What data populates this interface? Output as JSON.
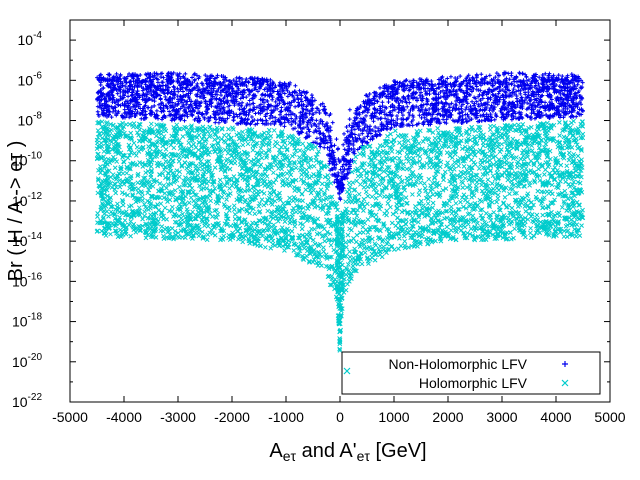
{
  "chart_data": {
    "type": "scatter",
    "title": "",
    "xlabel": {
      "base": "A",
      "sub": "eτ",
      "mid": " and A'",
      "sub2": "eτ",
      "tail": " [GeV]"
    },
    "ylabel": "Br ( H / A -> eτ )",
    "xlim": [
      -5000,
      5000
    ],
    "ylim_exponent": [
      -22,
      -3
    ],
    "y_scale": "log",
    "x_ticks": [
      "-5000",
      "-4000",
      "-3000",
      "-2000",
      "-1000",
      "0",
      "1000",
      "2000",
      "3000",
      "4000",
      "5000"
    ],
    "y_ticks": [
      {
        "base": "10",
        "exp": "-22"
      },
      {
        "base": "10",
        "exp": "-20"
      },
      {
        "base": "10",
        "exp": "-18"
      },
      {
        "base": "10",
        "exp": "-16"
      },
      {
        "base": "10",
        "exp": "-14"
      },
      {
        "base": "10",
        "exp": "-12"
      },
      {
        "base": "10",
        "exp": "-10"
      },
      {
        "base": "10",
        "exp": "-8"
      },
      {
        "base": "10",
        "exp": "-6"
      },
      {
        "base": "10",
        "exp": "-4"
      }
    ],
    "legend_position": "bottom-right",
    "series": [
      {
        "name": "Non-Holomorphic LFV",
        "marker": "+",
        "color": "#0000ee",
        "x_range": [
          -4500,
          4500
        ],
        "log10_br_upper_envelope": [
          [
            -4500,
            -5.7
          ],
          [
            -3000,
            -5.6
          ],
          [
            -1000,
            -6.0
          ],
          [
            -300,
            -7.0
          ],
          [
            0,
            -12.0
          ],
          [
            300,
            -7.0
          ],
          [
            1000,
            -6.0
          ],
          [
            3000,
            -5.6
          ],
          [
            4500,
            -5.7
          ]
        ],
        "log10_br_dense_band": [
          [
            -4500,
            -7.8,
            -6.0
          ],
          [
            -1000,
            -8.3,
            -6.3
          ],
          [
            -300,
            -9.5,
            -7.5
          ],
          [
            0,
            -12.0,
            -11.0
          ],
          [
            300,
            -9.5,
            -7.5
          ],
          [
            1000,
            -8.3,
            -6.3
          ],
          [
            4500,
            -7.8,
            -6.0
          ]
        ]
      },
      {
        "name": "Holomorphic LFV",
        "marker": "x",
        "color": "#00cccc",
        "x_range": [
          -4500,
          4500
        ],
        "log10_br_upper_envelope": [
          [
            -4500,
            -8.0
          ],
          [
            -1000,
            -8.5
          ],
          [
            -300,
            -9.5
          ],
          [
            0,
            -13.0
          ],
          [
            300,
            -9.5
          ],
          [
            1000,
            -8.5
          ],
          [
            4500,
            -8.0
          ]
        ],
        "log10_br_lower_envelope": [
          [
            -4500,
            -13.8
          ],
          [
            -2000,
            -14.0
          ],
          [
            -1000,
            -14.5
          ],
          [
            -300,
            -15.5
          ],
          [
            -50,
            -17.0
          ],
          [
            0,
            -19.8
          ],
          [
            50,
            -17.0
          ],
          [
            300,
            -15.5
          ],
          [
            1000,
            -14.5
          ],
          [
            2000,
            -14.0
          ],
          [
            4500,
            -13.8
          ]
        ]
      }
    ]
  }
}
